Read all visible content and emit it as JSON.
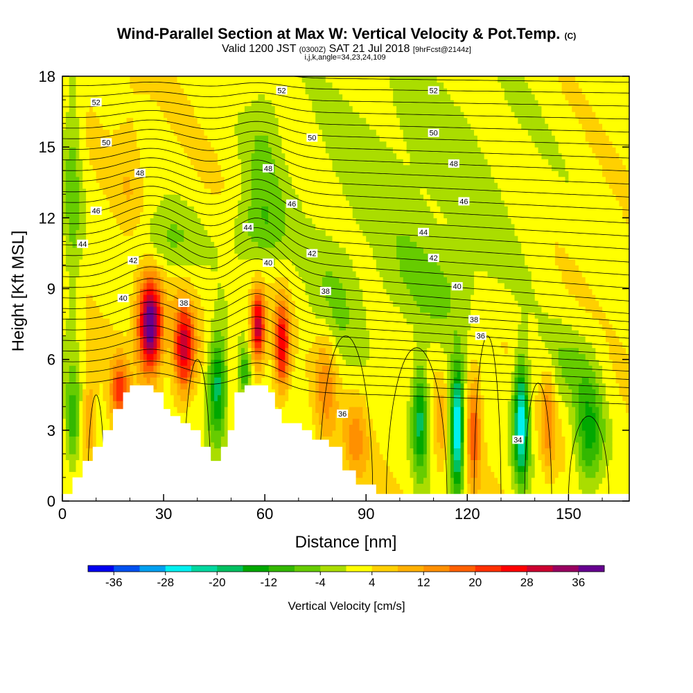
{
  "chart_data": {
    "type": "heatmap",
    "title": "Wind-Parallel Section at Max W: Vertical Velocity & Pot.Temp.",
    "copyright": "(C)",
    "subtitle_valid": "Valid 1200 JST",
    "subtitle_utc": "(0300Z)",
    "subtitle_date": "SAT 21 Jul 2018",
    "subtitle_fcst": "[9hrFcst@2144z]",
    "subtitle_ijk": "i,j,k,angle=34,23,24,109",
    "xlabel": "Distance [nm]",
    "ylabel": "Height [Kft MSL]",
    "xlim": [
      0,
      168
    ],
    "ylim": [
      0,
      18
    ],
    "x_ticks": [
      "0",
      "30",
      "60",
      "90",
      "120",
      "150"
    ],
    "y_ticks": [
      "0",
      "3",
      "6",
      "9",
      "12",
      "15",
      "18"
    ],
    "colorbar": {
      "label": "Vertical Velocity [cm/s]",
      "tick_labels": [
        "-36",
        "-28",
        "-20",
        "-12",
        "-4",
        "4",
        "12",
        "20",
        "28",
        "36"
      ],
      "levels": [
        -40,
        -36,
        -32,
        -28,
        -24,
        -20,
        -16,
        -12,
        -8,
        -4,
        0,
        4,
        8,
        12,
        16,
        20,
        24,
        28,
        32,
        36,
        40
      ],
      "colors": [
        "#0000f0",
        "#0050f0",
        "#00a0f0",
        "#00f0f0",
        "#00d8a0",
        "#00c060",
        "#00a800",
        "#33b800",
        "#66cc00",
        "#aadd00",
        "#ffff00",
        "#ffd000",
        "#ffb000",
        "#ff9000",
        "#ff6000",
        "#ff3000",
        "#ff0000",
        "#cc0030",
        "#990060",
        "#660090"
      ]
    },
    "theta_contour_labels": [
      "52",
      "50",
      "48",
      "46",
      "44",
      "42",
      "40",
      "38",
      "36",
      "34"
    ],
    "theta_labels_placed": [
      {
        "x": 10,
        "y": 16.9,
        "v": "52"
      },
      {
        "x": 65,
        "y": 17.4,
        "v": "52"
      },
      {
        "x": 110,
        "y": 17.4,
        "v": "52"
      },
      {
        "x": 13,
        "y": 15.2,
        "v": "50"
      },
      {
        "x": 74,
        "y": 15.4,
        "v": "50"
      },
      {
        "x": 110,
        "y": 15.6,
        "v": "50"
      },
      {
        "x": 23,
        "y": 13.9,
        "v": "48"
      },
      {
        "x": 61,
        "y": 14.1,
        "v": "48"
      },
      {
        "x": 116,
        "y": 14.3,
        "v": "48"
      },
      {
        "x": 10,
        "y": 12.3,
        "v": "46"
      },
      {
        "x": 68,
        "y": 12.6,
        "v": "46"
      },
      {
        "x": 119,
        "y": 12.7,
        "v": "46"
      },
      {
        "x": 6,
        "y": 10.9,
        "v": "44"
      },
      {
        "x": 55,
        "y": 11.6,
        "v": "44"
      },
      {
        "x": 107,
        "y": 11.4,
        "v": "44"
      },
      {
        "x": 21,
        "y": 10.2,
        "v": "42"
      },
      {
        "x": 74,
        "y": 10.5,
        "v": "42"
      },
      {
        "x": 110,
        "y": 10.3,
        "v": "42"
      },
      {
        "x": 18,
        "y": 8.6,
        "v": "40"
      },
      {
        "x": 61,
        "y": 10.1,
        "v": "40"
      },
      {
        "x": 117,
        "y": 9.1,
        "v": "40"
      },
      {
        "x": 36,
        "y": 8.4,
        "v": "38"
      },
      {
        "x": 78,
        "y": 8.9,
        "v": "38"
      },
      {
        "x": 122,
        "y": 7.7,
        "v": "38"
      },
      {
        "x": 83,
        "y": 3.7,
        "v": "36"
      },
      {
        "x": 124,
        "y": 7.0,
        "v": "36"
      },
      {
        "x": 135,
        "y": 2.6,
        "v": "34"
      }
    ],
    "terrain": [
      [
        0,
        0.3
      ],
      [
        3,
        0.3
      ],
      [
        3,
        1.0
      ],
      [
        6,
        1.0
      ],
      [
        6,
        1.7
      ],
      [
        9,
        1.7
      ],
      [
        9,
        2.3
      ],
      [
        12,
        2.3
      ],
      [
        12,
        3.0
      ],
      [
        15,
        3.0
      ],
      [
        15,
        3.9
      ],
      [
        18,
        3.9
      ],
      [
        18,
        4.6
      ],
      [
        20,
        4.6
      ],
      [
        20,
        4.9
      ],
      [
        27,
        4.9
      ],
      [
        27,
        4.6
      ],
      [
        30,
        4.6
      ],
      [
        30,
        3.9
      ],
      [
        32,
        3.9
      ],
      [
        32,
        3.6
      ],
      [
        35,
        3.6
      ],
      [
        35,
        3.3
      ],
      [
        38,
        3.3
      ],
      [
        38,
        3.0
      ],
      [
        41,
        3.0
      ],
      [
        41,
        2.3
      ],
      [
        44,
        2.3
      ],
      [
        44,
        1.7
      ],
      [
        47,
        1.7
      ],
      [
        47,
        2.3
      ],
      [
        49,
        2.3
      ],
      [
        49,
        3.0
      ],
      [
        51,
        3.0
      ],
      [
        51,
        4.6
      ],
      [
        54,
        4.6
      ],
      [
        54,
        4.9
      ],
      [
        61,
        4.9
      ],
      [
        61,
        4.6
      ],
      [
        63,
        4.6
      ],
      [
        63,
        3.9
      ],
      [
        65,
        3.9
      ],
      [
        65,
        3.3
      ],
      [
        71,
        3.3
      ],
      [
        71,
        3.0
      ],
      [
        74,
        3.0
      ],
      [
        74,
        2.6
      ],
      [
        79,
        2.6
      ],
      [
        79,
        2.3
      ],
      [
        83,
        2.3
      ],
      [
        83,
        1.3
      ],
      [
        87,
        1.3
      ],
      [
        87,
        0.7
      ],
      [
        93,
        0.7
      ],
      [
        93,
        0.3
      ],
      [
        168,
        0.3
      ]
    ],
    "w_field": [
      {
        "x": 26,
        "z": 7.5,
        "sx": 2.5,
        "sz": 1.4,
        "a": 40
      },
      {
        "x": 36,
        "z": 6.5,
        "sx": 2.2,
        "sz": 1.3,
        "a": 28
      },
      {
        "x": 17,
        "z": 4.6,
        "sx": 2.0,
        "sz": 1.0,
        "a": 18
      },
      {
        "x": 46,
        "z": 4.9,
        "sx": 2.0,
        "sz": 1.6,
        "a": -22
      },
      {
        "x": 58,
        "z": 7.4,
        "sx": 1.5,
        "sz": 1.1,
        "a": 30
      },
      {
        "x": 65,
        "z": 6.6,
        "sx": 1.6,
        "sz": 1.3,
        "a": 26
      },
      {
        "x": 54,
        "z": 5.4,
        "sx": 1.4,
        "sz": 0.8,
        "a": -14
      },
      {
        "x": 78,
        "z": 5.0,
        "sx": 2.4,
        "sz": 1.8,
        "a": 12
      },
      {
        "x": 87,
        "z": 2.6,
        "sx": 2.5,
        "sz": 1.2,
        "a": 10
      },
      {
        "x": 106,
        "z": 3.5,
        "sx": 1.7,
        "sz": 1.7,
        "a": -20
      },
      {
        "x": 117,
        "z": 3.0,
        "sx": 1.4,
        "sz": 1.8,
        "a": -34
      },
      {
        "x": 112,
        "z": 3.2,
        "sx": 1.3,
        "sz": 1.4,
        "a": 6
      },
      {
        "x": 122,
        "z": 3.1,
        "sx": 1.6,
        "sz": 1.7,
        "a": 16
      },
      {
        "x": 136,
        "z": 3.4,
        "sx": 1.6,
        "sz": 1.8,
        "a": -30
      },
      {
        "x": 144,
        "z": 3.5,
        "sx": 1.5,
        "sz": 1.5,
        "a": 12
      },
      {
        "x": 156,
        "z": 2.8,
        "sx": 3.0,
        "sz": 1.7,
        "a": -16
      },
      {
        "x": 3,
        "z": 3.2,
        "sx": 1.5,
        "sz": 1.5,
        "a": -12
      },
      {
        "x": 8,
        "z": 3.5,
        "sx": 1.5,
        "sz": 1.3,
        "a": 10
      },
      {
        "x": 30,
        "z": 11.0,
        "sx": 7.0,
        "sz": 1.0,
        "a": -8
      },
      {
        "x": 58,
        "z": 11.5,
        "sx": 6.0,
        "sz": 1.2,
        "a": -8
      },
      {
        "x": 60,
        "z": 15.0,
        "sx": 4.0,
        "sz": 2.5,
        "a": -6
      },
      {
        "x": 105,
        "z": 14.0,
        "sx": 25.0,
        "sz": 4.0,
        "a": -5
      },
      {
        "x": 110,
        "z": 9.0,
        "sx": 12.0,
        "sz": 1.5,
        "a": -5
      },
      {
        "x": 3,
        "z": 13.0,
        "sx": 2.0,
        "sz": 5.0,
        "a": -8
      },
      {
        "x": 20,
        "z": 14.0,
        "sx": 3.0,
        "sz": 3.0,
        "a": 4
      },
      {
        "x": 80,
        "z": 8.0,
        "sx": 5.0,
        "sz": 2.0,
        "a": -6
      },
      {
        "x": 150,
        "z": 5.8,
        "sx": 6.0,
        "sz": 1.2,
        "a": -6
      }
    ]
  }
}
